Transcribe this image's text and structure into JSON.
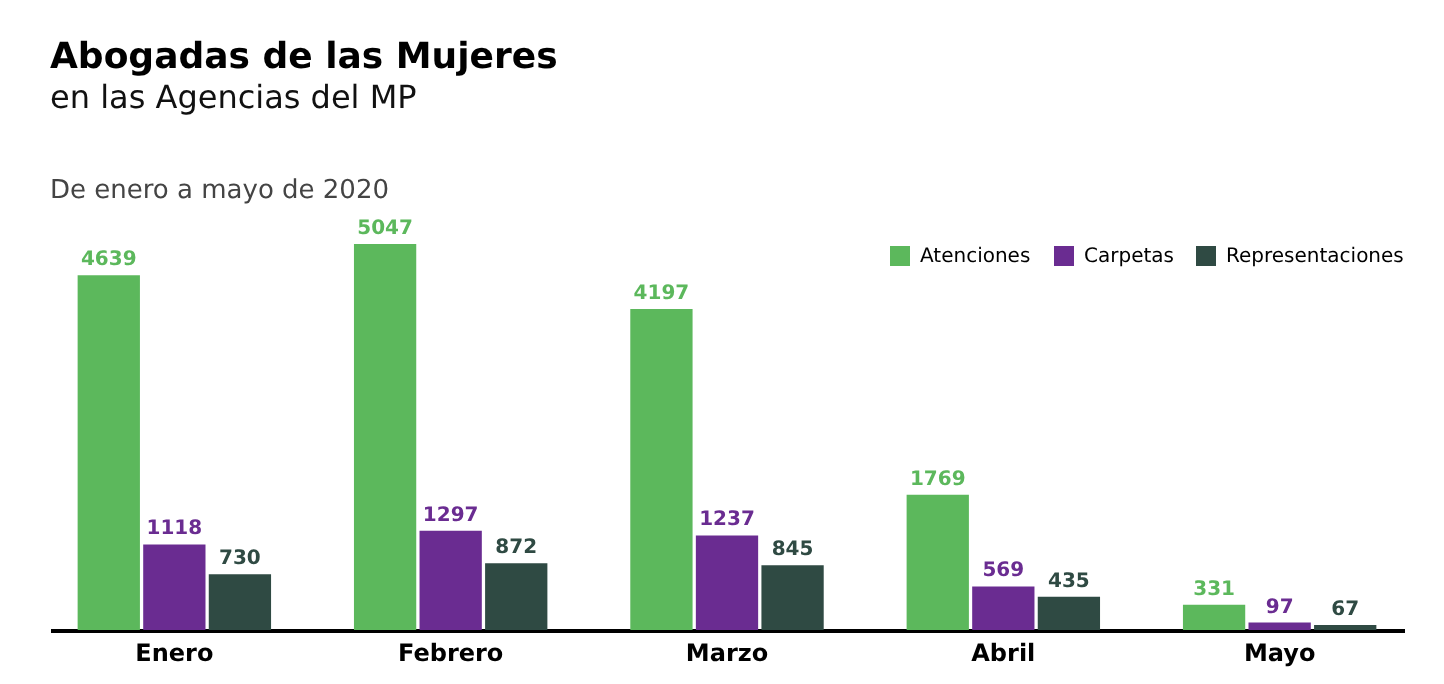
{
  "chart_data": {
    "type": "bar",
    "title": "Abogadas de las Mujeres",
    "subtitle": "en las Agencias del MP",
    "annotations": [
      "De enero a mayo de 2020"
    ],
    "categories": [
      "Enero",
      "Febrero",
      "Marzo",
      "Abril",
      "Mayo"
    ],
    "series": [
      {
        "name": "Atenciones",
        "color": "#5cb85c",
        "values": [
          4639,
          5047,
          4197,
          1769,
          331
        ]
      },
      {
        "name": "Carpetas",
        "color": "#6a2c91",
        "values": [
          1118,
          1297,
          1237,
          569,
          97
        ]
      },
      {
        "name": "Representaciones",
        "color": "#2f4a43",
        "values": [
          730,
          872,
          845,
          435,
          67
        ]
      }
    ],
    "data_labels": true,
    "legend": "top right",
    "grid": false
  }
}
